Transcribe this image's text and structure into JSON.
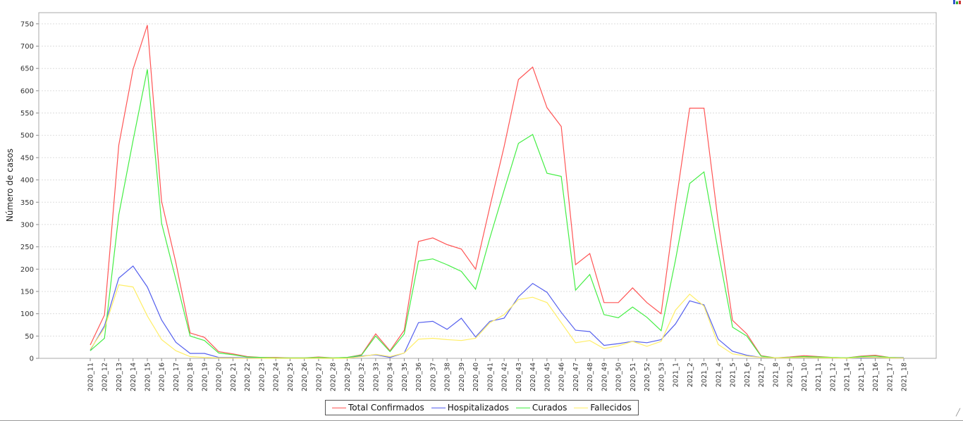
{
  "chart_data": {
    "type": "line",
    "title": "",
    "xlabel": "",
    "ylabel": "Número de casos",
    "ylim": [
      0,
      775
    ],
    "yticks": [
      0,
      50,
      100,
      150,
      200,
      250,
      300,
      350,
      400,
      450,
      500,
      550,
      600,
      650,
      700,
      750
    ],
    "grid": true,
    "legend_position": "bottom-center",
    "categories": [
      "2020_11",
      "2020_12",
      "2020_13",
      "2020_14",
      "2020_15",
      "2020_16",
      "2020_17",
      "2020_18",
      "2020_19",
      "2020_20",
      "2020_21",
      "2020_22",
      "2020_23",
      "2020_24",
      "2020_25",
      "2020_26",
      "2020_27",
      "2020_28",
      "2020_29",
      "2020_32",
      "2020_33",
      "2020_34",
      "2020_35",
      "2020_36",
      "2020_37",
      "2020_38",
      "2020_39",
      "2020_40",
      "2020_41",
      "2020_42",
      "2020_43",
      "2020_44",
      "2020_45",
      "2020_46",
      "2020_47",
      "2020_48",
      "2020_49",
      "2020_50",
      "2020_51",
      "2020_52",
      "2020_53",
      "2021_1",
      "2021_2",
      "2021_3",
      "2021_4",
      "2021_5",
      "2021_6",
      "2021_7",
      "2021_8",
      "2021_9",
      "2021_10",
      "2021_11",
      "2021_12",
      "2021_14",
      "2021_15",
      "2021_16",
      "2021_17",
      "2021_18"
    ],
    "series": [
      {
        "name": "Total Confirmados",
        "color": "#ff5555",
        "values": [
          30,
          97,
          478,
          648,
          747,
          352,
          214,
          57,
          47,
          15,
          10,
          4,
          2,
          2,
          1,
          1,
          3,
          1,
          2,
          8,
          55,
          17,
          63,
          262,
          270,
          255,
          245,
          200,
          340,
          475,
          625,
          653,
          562,
          520,
          210,
          235,
          125,
          125,
          158,
          125,
          100,
          342,
          561,
          561,
          305,
          85,
          55,
          6,
          1,
          3,
          6,
          4,
          2,
          1,
          5,
          7,
          2,
          1
        ]
      },
      {
        "name": "Hospitalizados",
        "color": "#5560ee",
        "values": [
          18,
          73,
          180,
          207,
          160,
          86,
          36,
          11,
          11,
          2,
          2,
          1,
          1,
          0,
          0,
          0,
          0,
          0,
          1,
          5,
          8,
          2,
          12,
          80,
          83,
          65,
          90,
          48,
          83,
          90,
          138,
          168,
          148,
          103,
          63,
          60,
          29,
          33,
          38,
          35,
          42,
          77,
          129,
          120,
          43,
          16,
          7,
          2,
          1,
          2,
          3,
          2,
          1,
          0,
          1,
          2,
          2,
          2
        ]
      },
      {
        "name": "Curados",
        "color": "#44ee44",
        "values": [
          17,
          45,
          322,
          488,
          648,
          303,
          177,
          50,
          40,
          12,
          8,
          3,
          2,
          1,
          1,
          1,
          2,
          1,
          2,
          7,
          50,
          15,
          55,
          218,
          223,
          210,
          195,
          155,
          270,
          377,
          482,
          502,
          415,
          408,
          153,
          188,
          98,
          91,
          115,
          92,
          62,
          220,
          392,
          418,
          240,
          70,
          50,
          5,
          1,
          2,
          4,
          3,
          2,
          1,
          4,
          5,
          2,
          1
        ]
      },
      {
        "name": "Fallecidos",
        "color": "#ffee66",
        "values": [
          20,
          68,
          165,
          160,
          95,
          42,
          17,
          4,
          2,
          1,
          1,
          0,
          0,
          0,
          0,
          0,
          0,
          0,
          0,
          4,
          9,
          4,
          12,
          43,
          45,
          42,
          40,
          45,
          80,
          98,
          132,
          137,
          125,
          80,
          35,
          40,
          22,
          28,
          38,
          27,
          38,
          108,
          144,
          117,
          31,
          10,
          5,
          2,
          1,
          1,
          2,
          1,
          1,
          0,
          2,
          2,
          1,
          1
        ]
      }
    ]
  }
}
